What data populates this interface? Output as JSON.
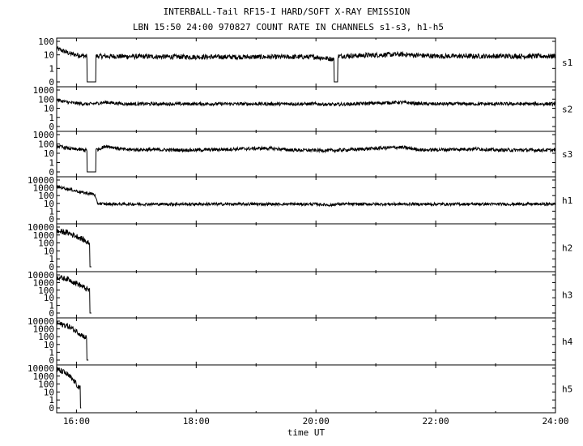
{
  "header": {
    "title_line1": "INTERBALL-Tail RF15-I HARD/SOFT X-RAY EMISSION",
    "title_line2": "LBN 15:50 24:00 970827  COUNT RATE IN CHANNELS s1-s3, h1-h5"
  },
  "chart_data": {
    "type": "line",
    "title": "INTERBALL-Tail RF15-I HARD/SOFT X-RAY EMISSION",
    "subtitle": "LBN 15:50 24:00 970827  COUNT RATE IN CHANNELS s1-s3, h1-h5",
    "xlabel": "time UT",
    "x_ticks": [
      "16:00",
      "18:00",
      "20:00",
      "22:00",
      "24:00"
    ],
    "xlim_hours": [
      15.67,
      24.0
    ],
    "y_scale": "log",
    "panels": [
      {
        "name": "s1",
        "ytick_labels": [
          "100",
          "10",
          "1",
          "0"
        ],
        "trend": [
          [
            15.67,
            30
          ],
          [
            15.9,
            12
          ],
          [
            16.15,
            8
          ],
          [
            16.2,
            0
          ],
          [
            16.3,
            0
          ],
          [
            16.35,
            8
          ],
          [
            18.0,
            7
          ],
          [
            20.0,
            7
          ],
          [
            20.25,
            5
          ],
          [
            20.35,
            0
          ],
          [
            20.38,
            8
          ],
          [
            21.4,
            11
          ],
          [
            22.0,
            8
          ],
          [
            23.0,
            8
          ],
          [
            24.0,
            8
          ]
        ]
      },
      {
        "name": "s2",
        "ytick_labels": [
          "1000",
          "100",
          "10",
          "1",
          "0"
        ],
        "trend": [
          [
            15.67,
            80
          ],
          [
            15.9,
            40
          ],
          [
            16.2,
            28
          ],
          [
            16.5,
            45
          ],
          [
            16.8,
            30
          ],
          [
            18.0,
            30
          ],
          [
            20.0,
            30
          ],
          [
            20.3,
            25
          ],
          [
            21.4,
            45
          ],
          [
            21.8,
            30
          ],
          [
            22.0,
            30
          ],
          [
            24.0,
            30
          ]
        ]
      },
      {
        "name": "s3",
        "ytick_labels": [
          "1000",
          "100",
          "10",
          "1",
          "0"
        ],
        "trend": [
          [
            15.67,
            60
          ],
          [
            15.9,
            30
          ],
          [
            16.15,
            22
          ],
          [
            16.2,
            0
          ],
          [
            16.3,
            0
          ],
          [
            16.35,
            25
          ],
          [
            16.5,
            60
          ],
          [
            16.8,
            25
          ],
          [
            18.0,
            22
          ],
          [
            19.2,
            35
          ],
          [
            19.6,
            22
          ],
          [
            20.3,
            20
          ],
          [
            21.4,
            45
          ],
          [
            21.8,
            22
          ],
          [
            22.7,
            30
          ],
          [
            23.0,
            22
          ],
          [
            24.0,
            22
          ]
        ]
      },
      {
        "name": "h1",
        "ytick_labels": [
          "10000",
          "1000",
          "100",
          "10",
          "1",
          "0"
        ],
        "trend": [
          [
            15.67,
            1500
          ],
          [
            15.9,
            600
          ],
          [
            16.1,
            250
          ],
          [
            16.3,
            150
          ],
          [
            16.35,
            10
          ],
          [
            16.5,
            8
          ],
          [
            18.0,
            8
          ],
          [
            20.0,
            8
          ],
          [
            20.25,
            6
          ],
          [
            20.35,
            8
          ],
          [
            22.0,
            8
          ],
          [
            24.0,
            8
          ]
        ]
      },
      {
        "name": "h2",
        "ytick_labels": [
          "10000",
          "1000",
          "100",
          "10",
          "1",
          "0"
        ],
        "trend": [
          [
            15.67,
            3000
          ],
          [
            15.85,
            2000
          ],
          [
            16.05,
            500
          ],
          [
            16.2,
            100
          ],
          [
            16.25,
            0
          ]
        ]
      },
      {
        "name": "h3",
        "ytick_labels": [
          "10000",
          "1000",
          "100",
          "10",
          "1",
          "0"
        ],
        "trend": [
          [
            15.67,
            5000
          ],
          [
            15.85,
            3000
          ],
          [
            16.05,
            500
          ],
          [
            16.2,
            100
          ],
          [
            16.25,
            0
          ]
        ]
      },
      {
        "name": "h4",
        "ytick_labels": [
          "10000",
          "1000",
          "100",
          "10",
          "1",
          "0"
        ],
        "trend": [
          [
            15.67,
            5000
          ],
          [
            15.85,
            2500
          ],
          [
            16.0,
            500
          ],
          [
            16.15,
            80
          ],
          [
            16.2,
            0
          ]
        ]
      },
      {
        "name": "h5",
        "ytick_labels": [
          "10000",
          "1000",
          "100",
          "10",
          "1",
          "0"
        ],
        "trend": [
          [
            15.67,
            6000
          ],
          [
            15.8,
            3000
          ],
          [
            15.95,
            300
          ],
          [
            16.05,
            30
          ],
          [
            16.08,
            0
          ]
        ]
      }
    ],
    "grid": false,
    "line_color": "#000000"
  }
}
